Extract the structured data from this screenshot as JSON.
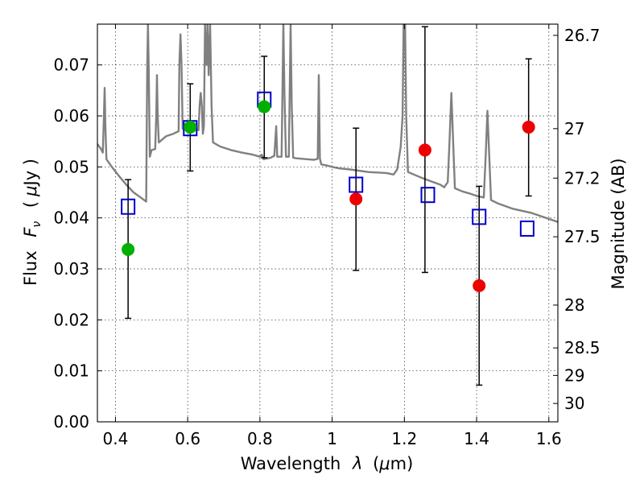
{
  "chart_data": {
    "type": "scatter",
    "title": "",
    "xlabel_prefix": "Wavelength",
    "xlabel_var": "λ",
    "xlabel_unit_open": "(",
    "xlabel_unit_mu": "μ",
    "xlabel_unit_rest": "m)",
    "ylabel_prefix": "Flux",
    "ylabel_var": "F",
    "ylabel_sub": "ν",
    "ylabel_unit_open": "(",
    "ylabel_unit_mu": "μ",
    "ylabel_unit_rest": "Jy )",
    "y2label": "Magnitude (AB)",
    "xlim": [
      0.35,
      1.625
    ],
    "ylim": [
      0.0,
      0.078
    ],
    "grid": true,
    "x_ticks": [
      0.4,
      0.6,
      0.8,
      1.0,
      1.2,
      1.4,
      1.6
    ],
    "x_tick_labels": [
      "0.4",
      "0.6",
      "0.8",
      "1",
      "1.2",
      "1.4",
      "1.6"
    ],
    "y_ticks": [
      0.0,
      0.01,
      0.02,
      0.03,
      0.04,
      0.05,
      0.06,
      0.07
    ],
    "y_tick_labels": [
      "0.00",
      "0.01",
      "0.02",
      "0.03",
      "0.04",
      "0.05",
      "0.06",
      "0.07"
    ],
    "y2_ticks": [
      {
        "label": "26.7",
        "flux": 0.0758
      },
      {
        "label": "27",
        "flux": 0.0575
      },
      {
        "label": "27.2",
        "flux": 0.0478
      },
      {
        "label": "27.5",
        "flux": 0.0363
      },
      {
        "label": "28",
        "flux": 0.0229
      },
      {
        "label": "28.5",
        "flux": 0.0145
      },
      {
        "label": "29",
        "flux": 0.0091
      },
      {
        "label": "30",
        "flux": 0.0036
      }
    ],
    "series": [
      {
        "name": "model spectrum",
        "kind": "line",
        "color": "#808080",
        "points": [
          [
            0.35,
            0.0545
          ],
          [
            0.36,
            0.0535
          ],
          [
            0.365,
            0.0528
          ],
          [
            0.368,
            0.06
          ],
          [
            0.37,
            0.0655
          ],
          [
            0.372,
            0.058
          ],
          [
            0.375,
            0.0515
          ],
          [
            0.39,
            0.05
          ],
          [
            0.41,
            0.0482
          ],
          [
            0.43,
            0.0465
          ],
          [
            0.45,
            0.045
          ],
          [
            0.47,
            0.044
          ],
          [
            0.485,
            0.0432
          ],
          [
            0.488,
            0.07
          ],
          [
            0.49,
            0.078
          ],
          [
            0.492,
            0.07
          ],
          [
            0.495,
            0.052
          ],
          [
            0.5,
            0.0533
          ],
          [
            0.51,
            0.0535
          ],
          [
            0.513,
            0.06
          ],
          [
            0.515,
            0.068
          ],
          [
            0.517,
            0.06
          ],
          [
            0.52,
            0.0548
          ],
          [
            0.54,
            0.056
          ],
          [
            0.56,
            0.0565
          ],
          [
            0.575,
            0.057
          ],
          [
            0.577,
            0.07
          ],
          [
            0.58,
            0.076
          ],
          [
            0.583,
            0.07
          ],
          [
            0.586,
            0.0575
          ],
          [
            0.6,
            0.058
          ],
          [
            0.62,
            0.0575
          ],
          [
            0.63,
            0.0572
          ],
          [
            0.633,
            0.062
          ],
          [
            0.636,
            0.0645
          ],
          [
            0.639,
            0.062
          ],
          [
            0.642,
            0.0565
          ],
          [
            0.645,
            0.058
          ],
          [
            0.648,
            0.078
          ],
          [
            0.652,
            0.07
          ],
          [
            0.655,
            0.078
          ],
          [
            0.658,
            0.068
          ],
          [
            0.662,
            0.078
          ],
          [
            0.666,
            0.062
          ],
          [
            0.67,
            0.0548
          ],
          [
            0.69,
            0.054
          ],
          [
            0.72,
            0.0533
          ],
          [
            0.75,
            0.0528
          ],
          [
            0.78,
            0.0524
          ],
          [
            0.8,
            0.052
          ],
          [
            0.805,
            0.0524
          ],
          [
            0.81,
            0.0515
          ],
          [
            0.83,
            0.0518
          ],
          [
            0.84,
            0.0522
          ],
          [
            0.845,
            0.058
          ],
          [
            0.848,
            0.052
          ],
          [
            0.86,
            0.052
          ],
          [
            0.865,
            0.078
          ],
          [
            0.868,
            0.064
          ],
          [
            0.872,
            0.052
          ],
          [
            0.88,
            0.052
          ],
          [
            0.885,
            0.078
          ],
          [
            0.888,
            0.062
          ],
          [
            0.892,
            0.0518
          ],
          [
            0.9,
            0.0517
          ],
          [
            0.93,
            0.0515
          ],
          [
            0.95,
            0.0514
          ],
          [
            0.96,
            0.0516
          ],
          [
            0.963,
            0.068
          ],
          [
            0.966,
            0.0516
          ],
          [
            0.97,
            0.0505
          ],
          [
            0.99,
            0.0502
          ],
          [
            1.0,
            0.05
          ],
          [
            1.02,
            0.0497
          ],
          [
            1.05,
            0.0495
          ],
          [
            1.1,
            0.049
          ],
          [
            1.15,
            0.0488
          ],
          [
            1.17,
            0.0485
          ],
          [
            1.18,
            0.0495
          ],
          [
            1.19,
            0.054
          ],
          [
            1.195,
            0.06
          ],
          [
            1.198,
            0.078
          ],
          [
            1.202,
            0.078
          ],
          [
            1.205,
            0.06
          ],
          [
            1.21,
            0.049
          ],
          [
            1.25,
            0.0478
          ],
          [
            1.28,
            0.047
          ],
          [
            1.3,
            0.0465
          ],
          [
            1.31,
            0.046
          ],
          [
            1.32,
            0.047
          ],
          [
            1.325,
            0.055
          ],
          [
            1.33,
            0.0645
          ],
          [
            1.335,
            0.055
          ],
          [
            1.34,
            0.0458
          ],
          [
            1.36,
            0.0452
          ],
          [
            1.38,
            0.0448
          ],
          [
            1.4,
            0.0443
          ],
          [
            1.42,
            0.044
          ],
          [
            1.425,
            0.052
          ],
          [
            1.43,
            0.061
          ],
          [
            1.435,
            0.052
          ],
          [
            1.44,
            0.0435
          ],
          [
            1.46,
            0.0428
          ],
          [
            1.5,
            0.0418
          ],
          [
            1.55,
            0.041
          ],
          [
            1.6,
            0.0398
          ],
          [
            1.625,
            0.0392
          ]
        ]
      },
      {
        "name": "observed (green)",
        "kind": "marker-circle",
        "color": "#00b000",
        "x": [
          0.435,
          0.607,
          0.812
        ],
        "y": [
          0.0338,
          0.0578,
          0.0618
        ]
      },
      {
        "name": "observed (red)",
        "kind": "marker-circle",
        "color": "#ee0000",
        "x": [
          1.066,
          1.257,
          1.407,
          1.544
        ],
        "y": [
          0.0437,
          0.0533,
          0.0267,
          0.0578
        ]
      },
      {
        "name": "model photometry",
        "kind": "marker-square-open",
        "color": "#0000cc",
        "x": [
          0.435,
          0.607,
          0.812,
          1.066,
          1.265,
          1.407,
          1.54
        ],
        "y": [
          0.0422,
          0.0576,
          0.0632,
          0.0465,
          0.0445,
          0.0402,
          0.0379
        ]
      },
      {
        "name": "error bars",
        "kind": "errorbar",
        "color": "#000000",
        "x": [
          0.435,
          0.607,
          0.812,
          1.066,
          1.257,
          1.407,
          1.544
        ],
        "lo": [
          0.0203,
          0.0492,
          0.0518,
          0.0297,
          0.0293,
          0.0072,
          0.0443
        ],
        "hi": [
          0.0475,
          0.0663,
          0.0717,
          0.0576,
          0.0775,
          0.0462,
          0.0712
        ]
      }
    ]
  }
}
